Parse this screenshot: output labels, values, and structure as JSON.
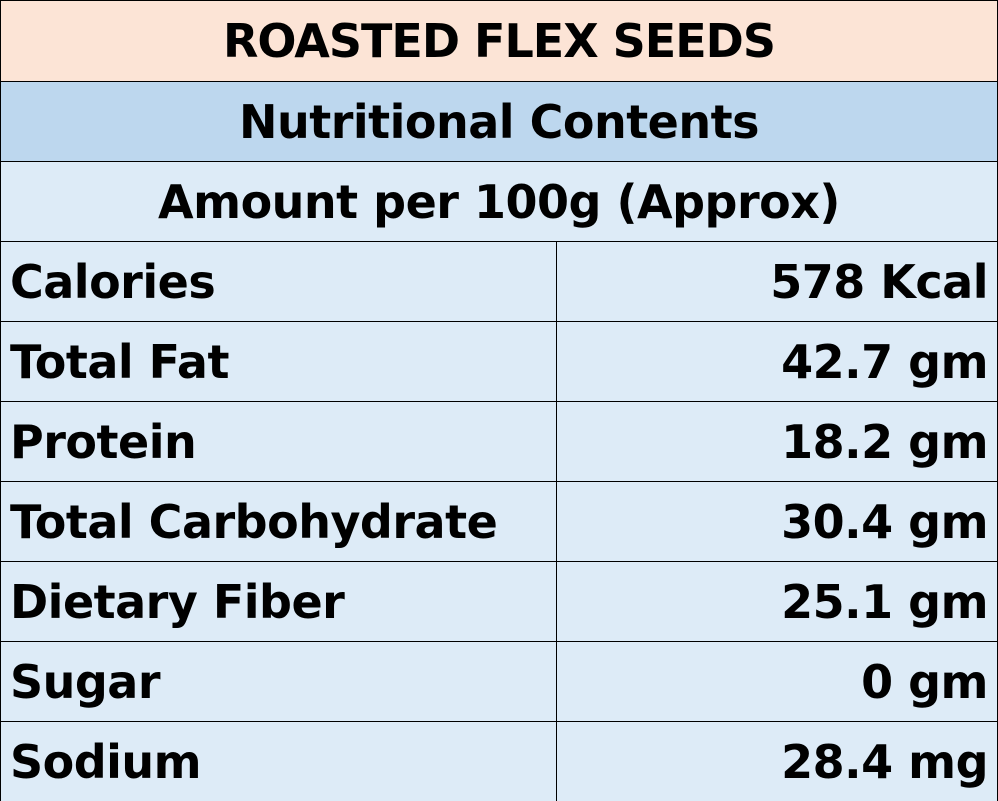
{
  "title": "ROASTED FLEX SEEDS",
  "subtitle": "Nutritional Contents",
  "amount_header": "Amount per 100g (Approx)",
  "rows": [
    {
      "name": "Calories",
      "value": "578 Kcal"
    },
    {
      "name": "Total Fat",
      "value": "42.7 gm"
    },
    {
      "name": "Protein",
      "value": "18.2 gm"
    },
    {
      "name": "Total Carbohydrate",
      "value": "30.4 gm"
    },
    {
      "name": "Dietary Fiber",
      "value": "25.1 gm"
    },
    {
      "name": "Sugar",
      "value": "0 gm"
    },
    {
      "name": "Sodium",
      "value": "28.4 mg"
    }
  ],
  "colors": {
    "title_bg": "#fce4d6",
    "subtitle_bg": "#bdd7ee",
    "row_bg": "#ddebf7",
    "border": "#000000"
  }
}
